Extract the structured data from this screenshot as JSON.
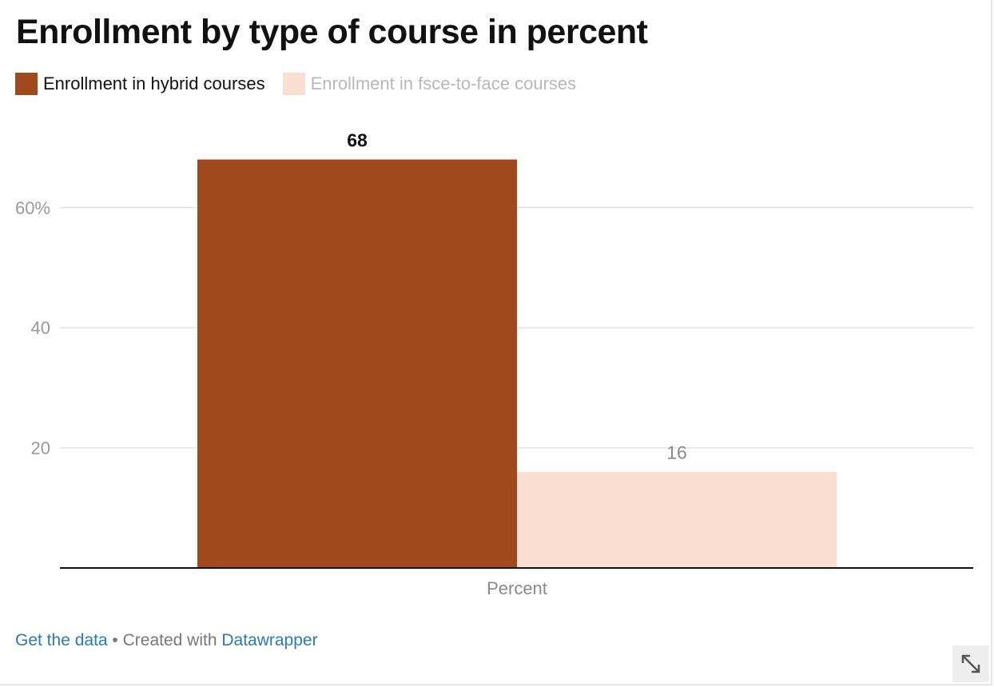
{
  "chart_data": {
    "type": "bar",
    "title": "Enrollment by type of course in percent",
    "categories": [
      "Percent"
    ],
    "series": [
      {
        "name": "Enrollment in hybrid courses",
        "values": [
          68
        ],
        "color": "#a0491c"
      },
      {
        "name": "Enrollment in fsce-to-face courses",
        "values": [
          16
        ],
        "color": "#f9dfd1"
      }
    ],
    "value_labels": [
      "68",
      "16"
    ],
    "yticks": [
      {
        "value": 20,
        "label": "20"
      },
      {
        "value": 40,
        "label": "40"
      },
      {
        "value": 60,
        "label": "60%"
      }
    ],
    "ylim": [
      0,
      72
    ],
    "grid": true,
    "legend_position": "top-left",
    "xlabel": "",
    "ylabel": ""
  },
  "footer": {
    "get_data": "Get the data",
    "separator": " • Created with ",
    "datawrapper": "Datawrapper"
  },
  "icons": {
    "resize": "expand-arrows-icon"
  },
  "colors": {
    "hybrid_legend_text": "#111111",
    "face_legend_text": "#b8b8b8",
    "grid": "#e2e2e2",
    "tick_label": "#9a9a9a"
  }
}
